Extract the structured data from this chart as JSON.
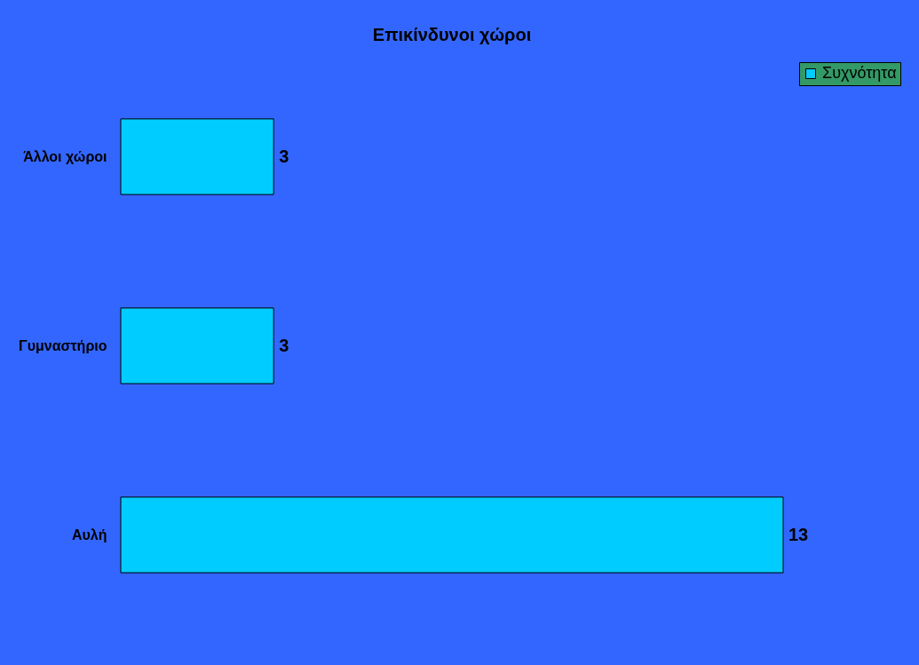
{
  "chart_data": {
    "type": "bar",
    "orientation": "horizontal",
    "title": "Επικίνδυνοι χώροι",
    "categories": [
      "Άλλοι χώροι",
      "Γυμναστήριο",
      "Αυλή"
    ],
    "series": [
      {
        "name": "Συχνότητα",
        "color": "#00ccff",
        "values": [
          3,
          3,
          13
        ]
      }
    ],
    "data_labels": true,
    "legend": "right",
    "grid": false
  }
}
